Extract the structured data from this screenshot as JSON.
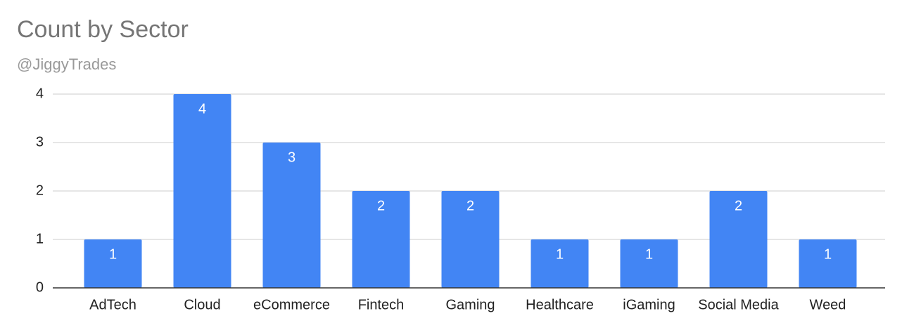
{
  "chart_data": {
    "type": "bar",
    "title": "Count by Sector",
    "subtitle": "@JiggyTrades",
    "categories": [
      "AdTech",
      "Cloud",
      "eCommerce",
      "Fintech",
      "Gaming",
      "Healthcare",
      "iGaming",
      "Social Media",
      "Weed"
    ],
    "values": [
      1,
      4,
      3,
      2,
      2,
      1,
      1,
      2,
      1
    ],
    "color": "#4285f4",
    "ylim": [
      0,
      4
    ],
    "yticks": [
      0,
      1,
      2,
      3,
      4
    ],
    "grid": true
  }
}
